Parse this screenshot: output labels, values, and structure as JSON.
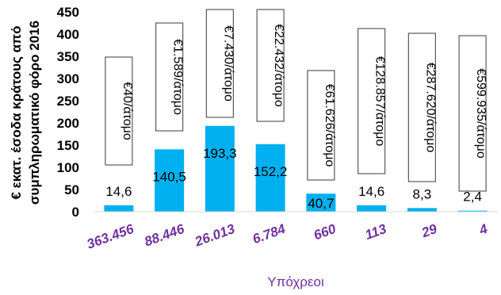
{
  "chart_data": {
    "type": "bar",
    "categories": [
      "363.456",
      "88.446",
      "26.013",
      "6.784",
      "660",
      "113",
      "29",
      "4"
    ],
    "values": [
      14.6,
      140.5,
      193.3,
      152.2,
      40.7,
      14.6,
      8.3,
      2.4
    ],
    "value_labels": [
      "14,6",
      "140,5",
      "193,3",
      "152,2",
      "40,7",
      "14,6",
      "8,3",
      "2,4"
    ],
    "per_person_labels": [
      "€40/άτομο",
      "€1.589/άτομο",
      "€7.430/άτομο",
      "€22.432/άτομο",
      "€61.626/άτομο",
      "€128.857/άτομο",
      "€287.620/άτομο",
      "€599.935/άτομο"
    ],
    "title": "",
    "xlabel": "Υπόχρεοι",
    "ylabel_line1": "€ εκατ. έσοδα κράτους από",
    "ylabel_line2": "συμπληρωματικό φόρο 2016",
    "ylim": [
      0,
      450
    ],
    "yticks": [
      0,
      50,
      100,
      150,
      200,
      250,
      300,
      350,
      400,
      450
    ],
    "grid": false,
    "legend": "none",
    "bar_color": "#00b0f0",
    "category_label_color": "#7030a0",
    "xlabel_color": "#7030a0"
  }
}
